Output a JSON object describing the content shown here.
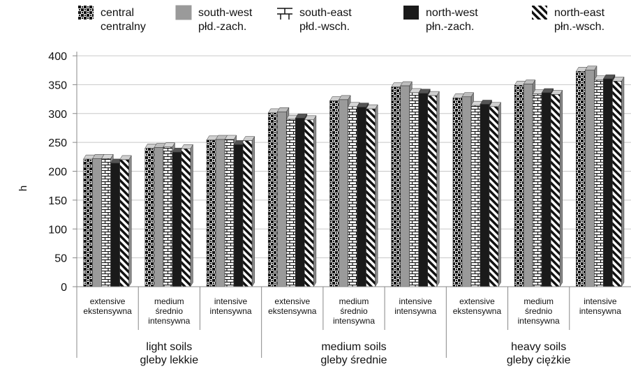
{
  "chart_data": {
    "type": "bar",
    "ylabel": "h",
    "ylim": [
      0,
      400
    ],
    "yticks": [
      0,
      50,
      100,
      150,
      200,
      250,
      300,
      350,
      400
    ],
    "grid": true,
    "legend_position": "top",
    "categories": [
      {
        "label": "extensive\nekstensywna",
        "group": 0
      },
      {
        "label": "medium\nśrednio\nintensywna",
        "group": 0
      },
      {
        "label": "intensive\nintensywna",
        "group": 0
      },
      {
        "label": "extensive\nekstensywna",
        "group": 1
      },
      {
        "label": "medium\nśrednio\nintensywna",
        "group": 1
      },
      {
        "label": "intensive\nintensywna",
        "group": 1
      },
      {
        "label": "extensive\nekstensywna",
        "group": 2
      },
      {
        "label": "medium\nśrednio\nintensywna",
        "group": 2
      },
      {
        "label": "intensive\nintensywna",
        "group": 2
      }
    ],
    "groups": [
      {
        "label": "light soils\ngleby lekkie"
      },
      {
        "label": "medium soils\ngleby średnie"
      },
      {
        "label": "heavy soils\ngleby ciężkie"
      }
    ],
    "series": [
      {
        "name": "central\ncentralny",
        "pattern": "checker",
        "values": [
          221,
          240,
          254,
          301,
          322,
          346,
          327,
          349,
          373
        ]
      },
      {
        "name": "south-west\npłd.-zach.",
        "pattern": "gray",
        "values": [
          222,
          241,
          255,
          303,
          324,
          348,
          329,
          351,
          375
        ]
      },
      {
        "name": "south-east\npłd.-wsch.",
        "pattern": "brick",
        "values": [
          222,
          242,
          255,
          290,
          312,
          336,
          314,
          334,
          358
        ]
      },
      {
        "name": "north-west\npłn.-zach.",
        "pattern": "black",
        "values": [
          214,
          233,
          246,
          292,
          311,
          335,
          316,
          336,
          360
        ]
      },
      {
        "name": "north-east\npłn.-wsch.",
        "pattern": "diagonal",
        "values": [
          220,
          239,
          253,
          289,
          308,
          331,
          312,
          333,
          356
        ]
      }
    ]
  }
}
